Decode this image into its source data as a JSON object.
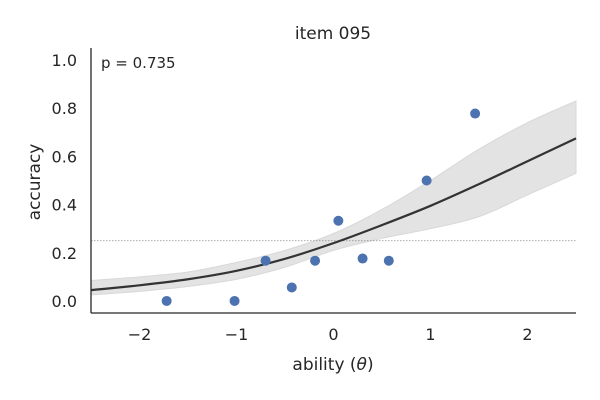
{
  "chart_data": {
    "type": "line",
    "title": "item 095",
    "xlabel_prefix": "ability (",
    "xlabel_symbol": "θ",
    "xlabel_suffix": ")",
    "ylabel": "accuracy",
    "annotation": "p = 0.735",
    "xlim": [
      -2.5,
      2.5
    ],
    "ylim": [
      -0.05,
      1.05
    ],
    "x_ticks": [
      -2,
      -1,
      0,
      1,
      2
    ],
    "x_tick_labels": [
      "−2",
      "−1",
      "0",
      "1",
      "2"
    ],
    "y_ticks": [
      0.0,
      0.2,
      0.4,
      0.6,
      0.8,
      1.0
    ],
    "y_tick_labels": [
      "0.0",
      "0.2",
      "0.4",
      "0.6",
      "0.8",
      "1.0"
    ],
    "reference_line_y": 0.25,
    "curve": {
      "x": [
        -2.5,
        -2.0,
        -1.5,
        -1.0,
        -0.5,
        0.0,
        0.5,
        1.0,
        1.5,
        2.0,
        2.5
      ],
      "y": [
        0.045,
        0.065,
        0.09,
        0.125,
        0.175,
        0.24,
        0.315,
        0.395,
        0.485,
        0.58,
        0.675
      ],
      "lower": [
        0.025,
        0.04,
        0.06,
        0.09,
        0.14,
        0.21,
        0.26,
        0.3,
        0.35,
        0.44,
        0.53
      ],
      "upper": [
        0.085,
        0.1,
        0.12,
        0.16,
        0.21,
        0.28,
        0.38,
        0.5,
        0.63,
        0.74,
        0.83
      ]
    },
    "points": [
      {
        "x": -1.72,
        "y": 0.0
      },
      {
        "x": -1.02,
        "y": 0.0
      },
      {
        "x": -0.7,
        "y": 0.167
      },
      {
        "x": -0.43,
        "y": 0.056
      },
      {
        "x": -0.19,
        "y": 0.167
      },
      {
        "x": 0.05,
        "y": 0.333
      },
      {
        "x": 0.3,
        "y": 0.176
      },
      {
        "x": 0.57,
        "y": 0.167
      },
      {
        "x": 0.96,
        "y": 0.5
      },
      {
        "x": 1.46,
        "y": 0.778
      }
    ],
    "colors": {
      "points": "#4c72b0",
      "curve": "#333333",
      "band": "#e3e3e3",
      "reference": "#8c8c8c",
      "axis": "#262626"
    }
  }
}
